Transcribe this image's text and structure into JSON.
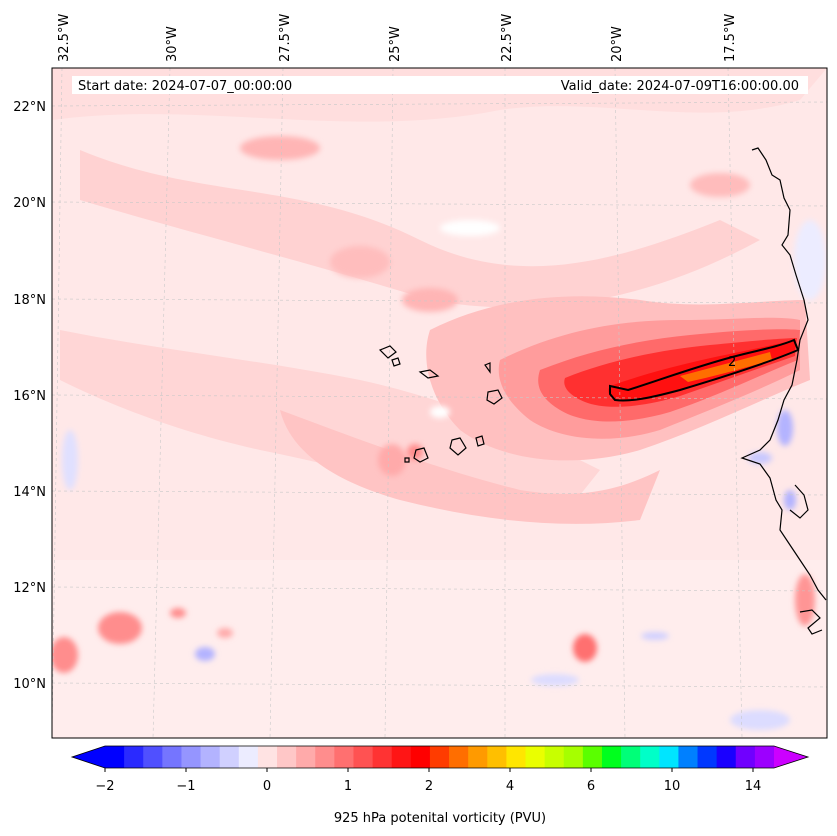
{
  "map": {
    "start_date": "Start date: 2024-07-07_00:00:00",
    "valid_date": "Valid_date: 2024-07-09T16:00:00.00",
    "contour_label": "2",
    "longitude_ticks": [
      "32.5°W",
      "30°W",
      "27.5°W",
      "25°W",
      "22.5°W",
      "20°W",
      "17.5°W"
    ],
    "latitude_ticks": [
      "22°N",
      "20°N",
      "18°N",
      "16°N",
      "14°N",
      "12°N",
      "10°N"
    ]
  },
  "colorbar": {
    "label": "925 hPa potenital vorticity (PVU)",
    "tick_labels": [
      "−2",
      "−1",
      "0",
      "1",
      "2",
      "4",
      "6",
      "10",
      "14"
    ],
    "colors": [
      "#0000ff",
      "#2a2aff",
      "#5050ff",
      "#7575ff",
      "#9595ff",
      "#b3b3ff",
      "#d0d0ff",
      "#ececff",
      "#ffe3e3",
      "#ffc7c7",
      "#ffaaaa",
      "#ff8d8d",
      "#ff7070",
      "#ff5252",
      "#ff3333",
      "#ff1515",
      "#ff0000",
      "#ff3c00",
      "#ff6e00",
      "#ff9a00",
      "#ffbf00",
      "#ffe600",
      "#eaff00",
      "#c8ff00",
      "#a6ff00",
      "#5aff00",
      "#00ff1e",
      "#00ff78",
      "#00ffc8",
      "#00e5ff",
      "#0080ff",
      "#0038ff",
      "#1a00ff",
      "#7000ff",
      "#9c00ff"
    ],
    "under_color": "#0000ff",
    "over_color": "#cc00ff"
  }
}
